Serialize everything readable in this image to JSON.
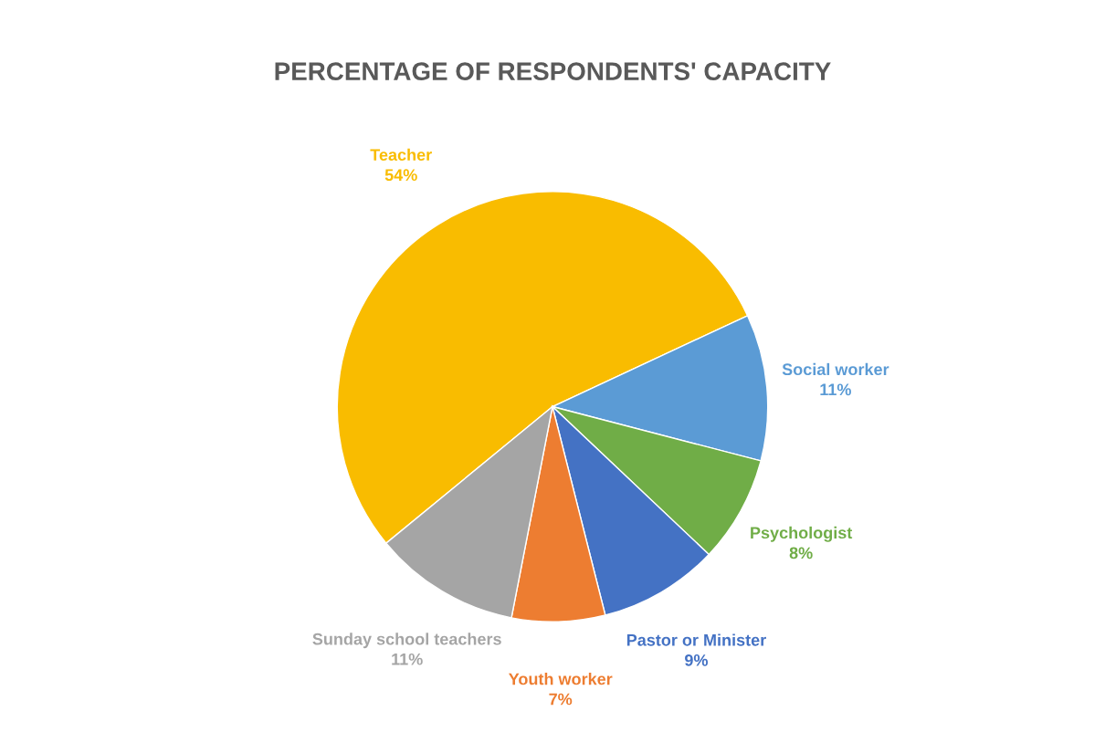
{
  "chart_data": {
    "type": "pie",
    "title": "PERCENTAGE OF RESPONDENTS' CAPACITY",
    "categories": [
      "Teacher",
      "Social worker",
      "Psychologist",
      "Pastor or Minister",
      "Youth worker",
      "Sunday school teachers"
    ],
    "values": [
      54,
      11,
      8,
      9,
      7,
      11
    ],
    "value_labels": [
      "54%",
      "11%",
      "8%",
      "9%",
      "7%",
      "11%"
    ],
    "colors": [
      "#f9bc00",
      "#5b9bd5",
      "#70ad47",
      "#4472c4",
      "#ed7d31",
      "#a5a5a5"
    ],
    "legend": false
  }
}
